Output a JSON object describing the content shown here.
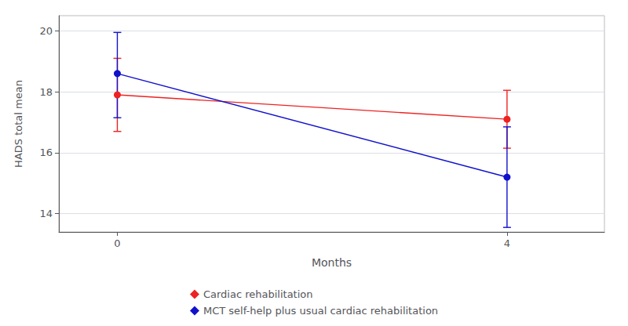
{
  "chart_data": {
    "type": "line",
    "xlabel": "Months",
    "ylabel": "HADS total mean",
    "x": [
      0,
      4
    ],
    "xlim": [
      -0.6,
      5.0
    ],
    "xticks": [
      0,
      4
    ],
    "ylim": [
      13.4,
      20.5
    ],
    "yticks": [
      14,
      16,
      18,
      20
    ],
    "grid": "y",
    "legend": "bottom",
    "marker": "circle",
    "series": [
      {
        "name": "Cardiac rehabilitation",
        "color": "#EE2222",
        "values": [
          17.9,
          17.1
        ],
        "ci_low": [
          16.7,
          16.15
        ],
        "ci_high": [
          19.1,
          18.05
        ]
      },
      {
        "name": "MCT self-help plus usual cardiac rehabilitation",
        "color": "#1111CC",
        "values": [
          18.6,
          15.2
        ],
        "ci_low": [
          17.15,
          13.55
        ],
        "ci_high": [
          19.95,
          16.85
        ]
      }
    ]
  }
}
